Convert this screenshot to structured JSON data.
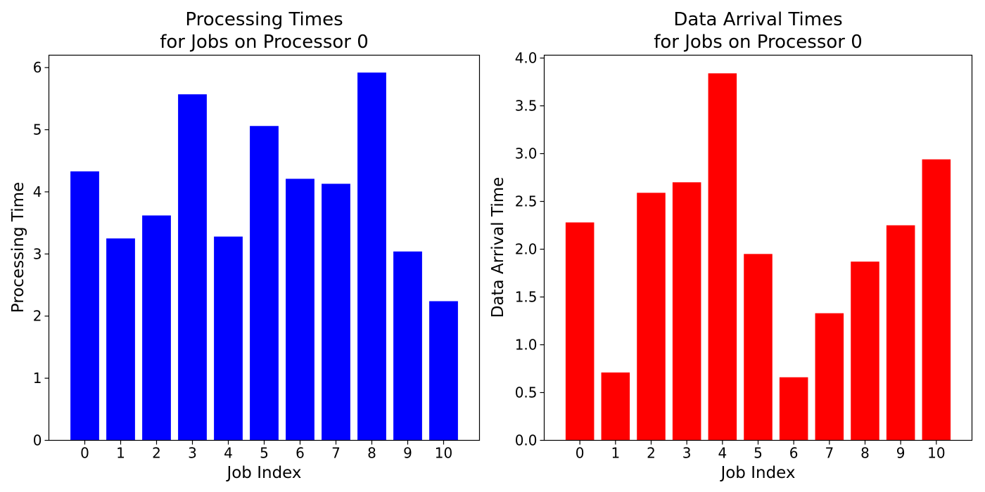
{
  "chart_data": [
    {
      "type": "bar",
      "title_line1": "Processing Times",
      "title_line2": "for Jobs on Processor 0",
      "xlabel": "Job Index",
      "ylabel": "Processing Time",
      "categories": [
        "0",
        "1",
        "2",
        "3",
        "4",
        "5",
        "6",
        "7",
        "8",
        "9",
        "10"
      ],
      "values": [
        4.33,
        3.25,
        3.62,
        5.57,
        3.28,
        5.06,
        4.21,
        4.13,
        5.92,
        3.04,
        2.24
      ],
      "ylim": [
        0,
        6.2
      ],
      "yticks": [
        "0",
        "1",
        "2",
        "3",
        "4",
        "5",
        "6"
      ],
      "ytick_values": [
        0,
        1,
        2,
        3,
        4,
        5,
        6
      ],
      "color": "#0000ff",
      "grid": false
    },
    {
      "type": "bar",
      "title_line1": "Data Arrival Times",
      "title_line2": "for Jobs on Processor 0",
      "xlabel": "Job Index",
      "ylabel": "Data Arrival Time",
      "categories": [
        "0",
        "1",
        "2",
        "3",
        "4",
        "5",
        "6",
        "7",
        "8",
        "9",
        "10"
      ],
      "values": [
        2.28,
        0.71,
        2.59,
        2.7,
        3.84,
        1.95,
        0.66,
        1.33,
        1.87,
        2.25,
        2.94
      ],
      "ylim": [
        0,
        4.03
      ],
      "yticks": [
        "0.0",
        "0.5",
        "1.0",
        "1.5",
        "2.0",
        "2.5",
        "3.0",
        "3.5",
        "4.0"
      ],
      "ytick_values": [
        0,
        0.5,
        1.0,
        1.5,
        2.0,
        2.5,
        3.0,
        3.5,
        4.0
      ],
      "color": "#ff0000",
      "grid": false
    }
  ]
}
